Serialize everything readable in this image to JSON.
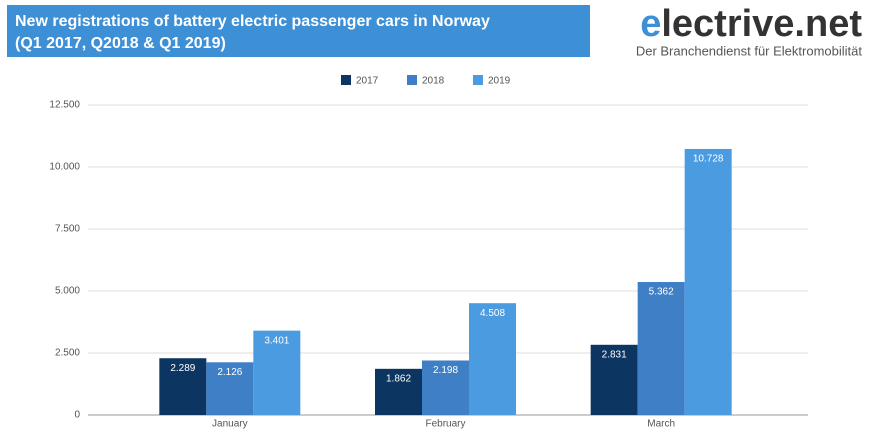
{
  "chart_data": {
    "type": "bar",
    "title": [
      "New registrations of battery electric passenger cars in Norway",
      "(Q1 2017, Q2018 & Q1 2019)"
    ],
    "logo": {
      "name": "electrive.net",
      "tagline": "Der Branchendienst für Elektromobilität"
    },
    "categories": [
      "January",
      "February",
      "March"
    ],
    "series": [
      {
        "name": "2017",
        "color": "#0c3561",
        "values": [
          2289,
          1862,
          2831
        ],
        "value_labels": [
          "2.289",
          "1.862",
          "2.831"
        ]
      },
      {
        "name": "2018",
        "color": "#3f7fc6",
        "values": [
          2126,
          2198,
          5362
        ],
        "value_labels": [
          "2.126",
          "2.198",
          "5.362"
        ]
      },
      {
        "name": "2019",
        "color": "#4b9be0",
        "values": [
          3401,
          4508,
          10728
        ],
        "value_labels": [
          "3.401",
          "4.508",
          "10.728"
        ]
      }
    ],
    "ylim": [
      0,
      12500
    ],
    "yticks": [
      0,
      {
        "value": 2500,
        "label": "2.500"
      },
      {
        "value": 5000,
        "label": "5.000"
      },
      {
        "value": 7500,
        "label": "7.500"
      },
      {
        "value": 10000,
        "label": "10.000"
      },
      {
        "value": 12500,
        "label": "12.500"
      }
    ],
    "grid": true,
    "legend": "top"
  }
}
